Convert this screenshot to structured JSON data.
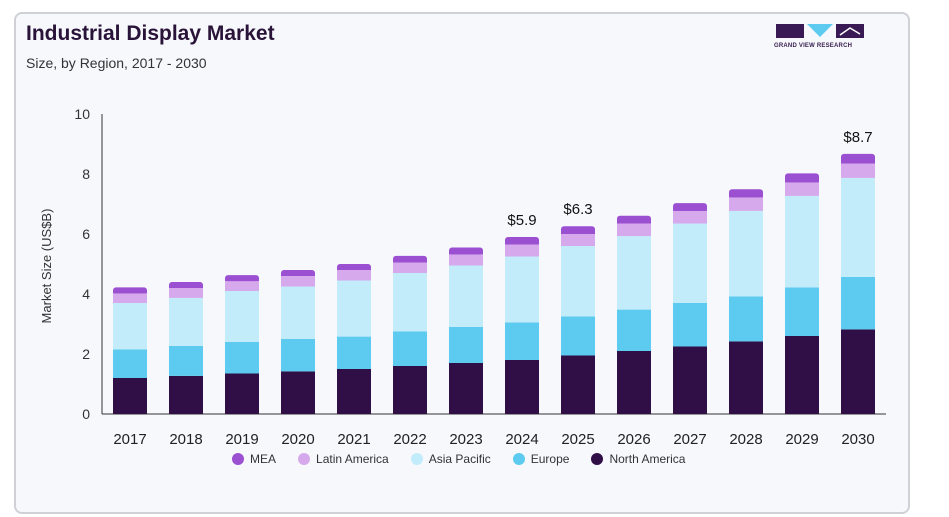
{
  "header": {
    "title": "Industrial Display Market",
    "subtitle": "Size, by Region, 2017 - 2030",
    "logo_text": "GRAND VIEW RESEARCH"
  },
  "colors": {
    "MEA": "#9b4fd1",
    "Latin America": "#d5a9ec",
    "Asia Pacific": "#c3ecfb",
    "Europe": "#5ccbef",
    "North America": "#2f0f45"
  },
  "chart_data": {
    "type": "bar",
    "stacked": true,
    "title": "Industrial Display Market",
    "subtitle": "Size, by Region, 2017 - 2030",
    "xlabel": "",
    "ylabel": "Market Size (US$B)",
    "ylim": [
      0,
      10
    ],
    "yticks": [
      0,
      2,
      4,
      6,
      8,
      10
    ],
    "categories": [
      "2017",
      "2018",
      "2019",
      "2020",
      "2021",
      "2022",
      "2023",
      "2024",
      "2025",
      "2026",
      "2027",
      "2028",
      "2029",
      "2030"
    ],
    "series": [
      {
        "name": "North America",
        "values": [
          1.2,
          1.27,
          1.35,
          1.42,
          1.5,
          1.6,
          1.7,
          1.8,
          1.95,
          2.1,
          2.25,
          2.42,
          2.6,
          2.82
        ]
      },
      {
        "name": "Europe",
        "values": [
          0.95,
          1.0,
          1.05,
          1.08,
          1.08,
          1.15,
          1.2,
          1.25,
          1.3,
          1.38,
          1.45,
          1.5,
          1.62,
          1.75
        ]
      },
      {
        "name": "Asia Pacific",
        "values": [
          1.55,
          1.6,
          1.7,
          1.75,
          1.87,
          1.95,
          2.05,
          2.2,
          2.35,
          2.45,
          2.65,
          2.85,
          3.05,
          3.3
        ]
      },
      {
        "name": "Latin America",
        "values": [
          0.32,
          0.33,
          0.33,
          0.35,
          0.35,
          0.35,
          0.37,
          0.4,
          0.4,
          0.42,
          0.42,
          0.45,
          0.45,
          0.48
        ]
      },
      {
        "name": "MEA",
        "values": [
          0.2,
          0.2,
          0.2,
          0.2,
          0.2,
          0.22,
          0.23,
          0.25,
          0.26,
          0.26,
          0.26,
          0.27,
          0.3,
          0.32
        ]
      }
    ],
    "annotations": [
      {
        "category": "2024",
        "label": "$5.9"
      },
      {
        "category": "2025",
        "label": "$6.3"
      },
      {
        "category": "2030",
        "label": "$8.7"
      }
    ],
    "grid": false,
    "legend": "bottom"
  }
}
